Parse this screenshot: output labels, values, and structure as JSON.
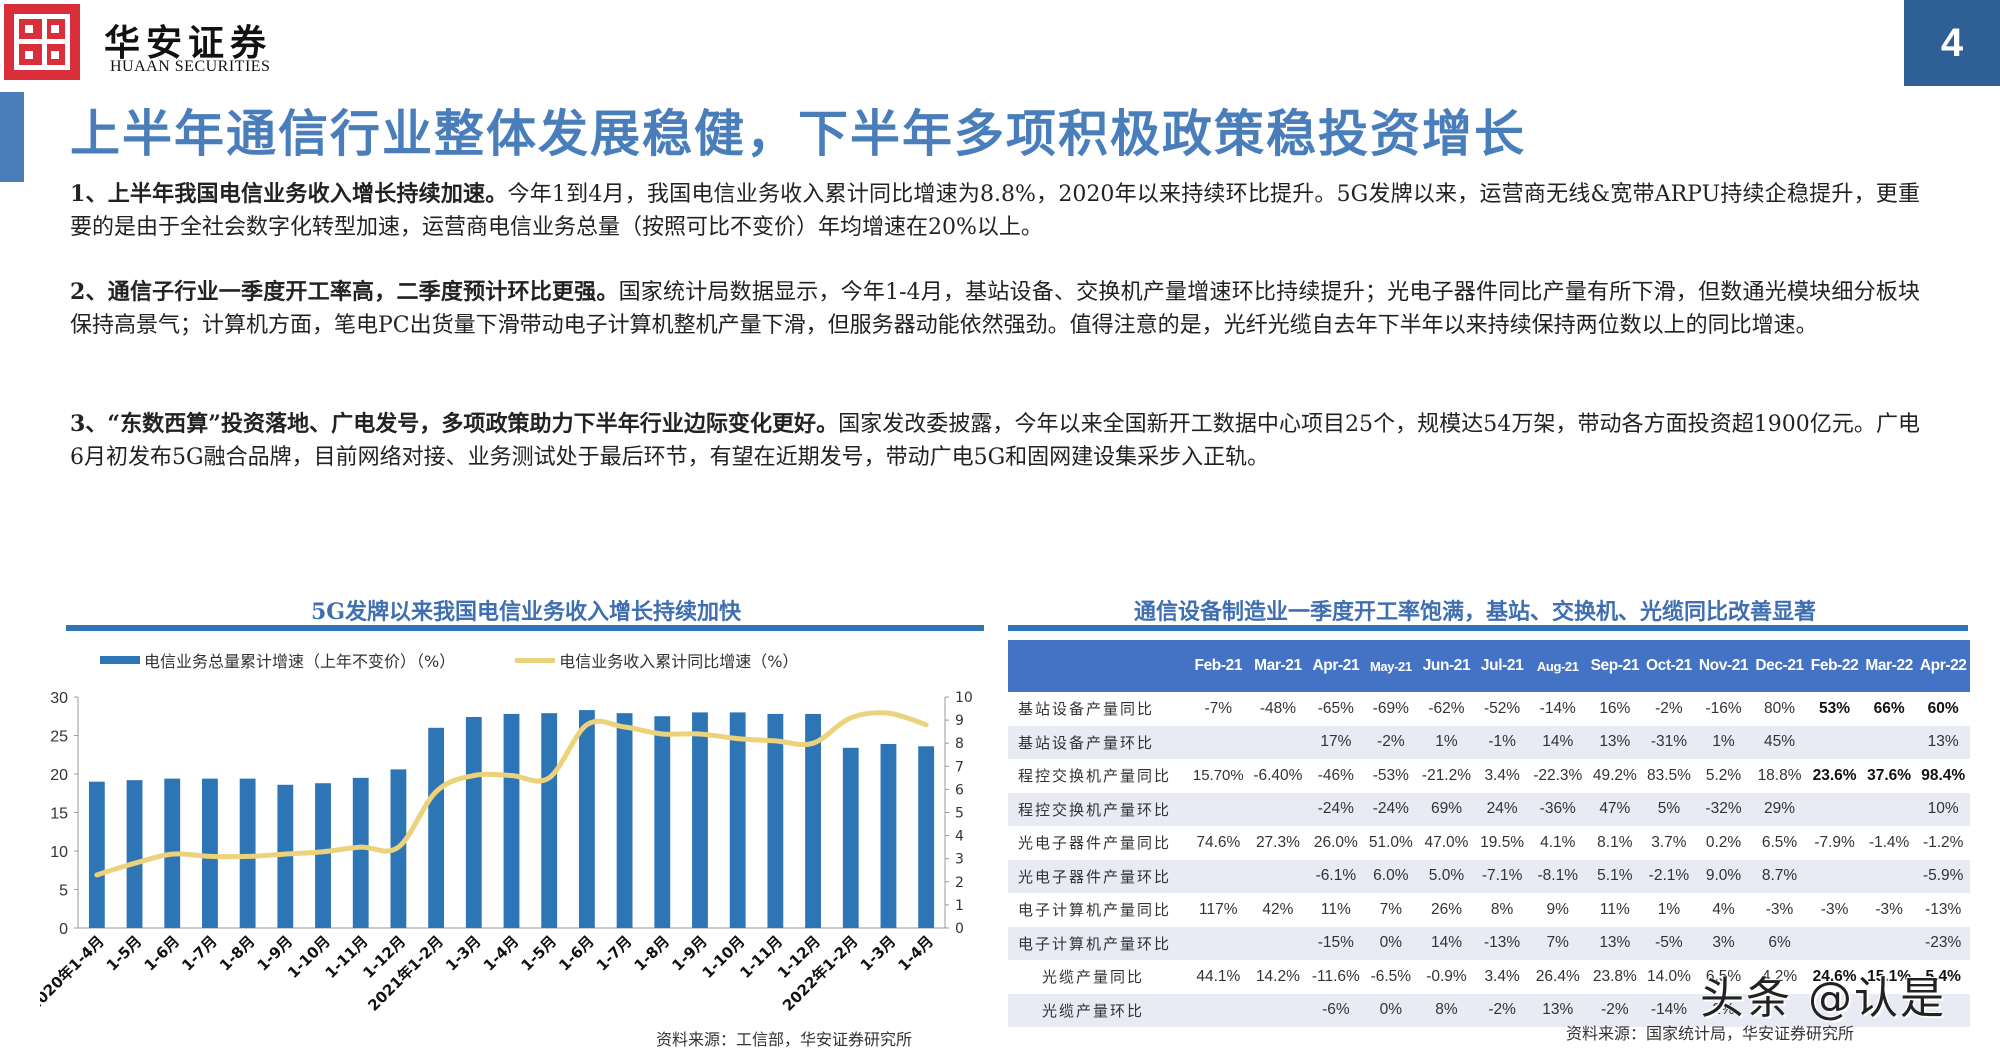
{
  "header": {
    "brand_cn": "华安证券",
    "brand_en": "HUAAN SECURITIES",
    "page_number": "4",
    "colors": {
      "logo_red": "#d92f3a",
      "page_num_bg": "#2e6096",
      "title_blue": "#4a7ebb"
    }
  },
  "title": "上半年通信行业整体发展稳健，下半年多项积极政策稳投资增长",
  "paragraphs": [
    {
      "lead": "1、上半年我国电信业务收入增长持续加速。",
      "body": "今年1到4月，我国电信业务收入累计同比增速为8.8%，2020年以来持续环比提升。5G发牌以来，运营商无线&宽带ARPU持续企稳提升，更重要的是由于全社会数字化转型加速，运营商电信业务总量（按照可比不变价）年均增速在20%以上。"
    },
    {
      "lead": "2、通信子行业一季度开工率高，二季度预计环比更强。",
      "body": "国家统计局数据显示，今年1-4月，基站设备、交换机产量增速环比持续提升；光电子器件同比产量有所下滑，但数通光模块细分板块保持高景气；计算机方面，笔电PC出货量下滑带动电子计算机整机产量下滑，但服务器动能依然强劲。值得注意的是，光纤光缆自去年下半年以来持续保持两位数以上的同比增速。"
    },
    {
      "lead": "3、“东数西算”投资落地、广电发号，多项政策助力下半年行业边际变化更好。",
      "body": "国家发改委披露，今年以来全国新开工数据中心项目25个，规模达54万架，带动各方面投资超1900亿元。广电6月初发布5G融合品牌，目前网络对接、业务测试处于最后环节，有望在近期发号，带动广电5G和固网建设集采步入正轨。"
    }
  ],
  "left_section": {
    "title": "5G发牌以来我国电信业务收入增长持续加快",
    "source": "资料来源：工信部，华安证券研究所"
  },
  "right_section": {
    "title": "通信设备制造业一季度开工率饱满，基站、交换机、光缆同比改善显著",
    "source": "资料来源：国家统计局，华安证券研究所"
  },
  "chart_data": [
    {
      "type": "bar+line",
      "title": "5G发牌以来我国电信业务收入增长持续加快",
      "categories": [
        "2020年1-4月",
        "1-5月",
        "1-6月",
        "1-7月",
        "1-8月",
        "1-9月",
        "1-10月",
        "1-11月",
        "1-12月",
        "2021年1-2月",
        "1-3月",
        "1-4月",
        "1-5月",
        "1-6月",
        "1-7月",
        "1-8月",
        "1-9月",
        "1-10月",
        "1-11月",
        "1-12月",
        "2022年1-2月",
        "1-3月",
        "1-4月"
      ],
      "series": [
        {
          "name": "电信业务总量累计增速（上年不变价）（%）",
          "type": "bar",
          "axis": "left",
          "color": "#2e75b6",
          "values": [
            19.0,
            19.2,
            19.4,
            19.4,
            19.4,
            18.6,
            18.8,
            19.5,
            20.6,
            26.0,
            27.4,
            27.8,
            27.9,
            28.3,
            27.9,
            27.5,
            28.0,
            28.0,
            27.8,
            27.8,
            23.4,
            23.9,
            23.6
          ]
        },
        {
          "name": "电信业务收入累计同比增速（%）",
          "type": "line",
          "axis": "right",
          "color": "#ecd27a",
          "values": [
            2.3,
            2.8,
            3.2,
            3.1,
            3.1,
            3.2,
            3.3,
            3.5,
            3.5,
            5.9,
            6.6,
            6.6,
            6.5,
            8.8,
            8.7,
            8.4,
            8.4,
            8.2,
            8.1,
            8.0,
            9.1,
            9.3,
            8.8
          ]
        }
      ],
      "left_axis": {
        "ticks": [
          "0",
          "5",
          "10",
          "15",
          "20",
          "25",
          "30"
        ],
        "ylim": [
          0,
          30
        ]
      },
      "right_axis": {
        "ticks": [
          "0",
          "1",
          "2",
          "3",
          "4",
          "5",
          "6",
          "7",
          "8",
          "9",
          "10"
        ],
        "ylim": [
          0,
          10
        ]
      },
      "legend_position": "top"
    },
    {
      "type": "table",
      "title": "通信设备制造业一季度开工率饱满，基站、交换机、光缆同比改善显著",
      "columns": [
        "Feb-21",
        "Mar-21",
        "Apr-21",
        "May-21",
        "Jun-21",
        "Jul-21",
        "Aug-21",
        "Sep-21",
        "Oct-21",
        "Nov-21",
        "Dec-21",
        "Feb-22",
        "Mar-22",
        "Apr-22"
      ],
      "rows": [
        {
          "label": "基站设备产量同比",
          "values": [
            "-7%",
            "-48%",
            "-65%",
            "-69%",
            "-62%",
            "-52%",
            "-14%",
            "16%",
            "-2%",
            "-16%",
            "80%",
            "53%",
            "66%",
            "60%"
          ]
        },
        {
          "label": "基站设备产量环比",
          "values": [
            "",
            "",
            "17%",
            "-2%",
            "1%",
            "-1%",
            "14%",
            "13%",
            "-31%",
            "1%",
            "45%",
            "",
            "",
            "13%"
          ]
        },
        {
          "label": "程控交换机产量同比",
          "values": [
            "15.70%",
            "-6.40%",
            "-46%",
            "-53%",
            "-21.2%",
            "3.4%",
            "-22.3%",
            "49.2%",
            "83.5%",
            "5.2%",
            "18.8%",
            "23.6%",
            "37.6%",
            "98.4%"
          ]
        },
        {
          "label": "程控交换机产量环比",
          "values": [
            "",
            "",
            "-24%",
            "-24%",
            "69%",
            "24%",
            "-36%",
            "47%",
            "5%",
            "-32%",
            "29%",
            "",
            "",
            "10%"
          ]
        },
        {
          "label": "光电子器件产量同比",
          "values": [
            "74.6%",
            "27.3%",
            "26.0%",
            "51.0%",
            "47.0%",
            "19.5%",
            "4.1%",
            "8.1%",
            "3.7%",
            "0.2%",
            "6.5%",
            "-7.9%",
            "-1.4%",
            "-1.2%"
          ]
        },
        {
          "label": "光电子器件产量环比",
          "values": [
            "",
            "",
            "-6.1%",
            "6.0%",
            "5.0%",
            "-7.1%",
            "-8.1%",
            "5.1%",
            "-2.1%",
            "9.0%",
            "8.7%",
            "",
            "",
            "-5.9%"
          ]
        },
        {
          "label": "电子计算机产量同比",
          "values": [
            "117%",
            "42%",
            "11%",
            "7%",
            "26%",
            "8%",
            "9%",
            "11%",
            "1%",
            "4%",
            "-3%",
            "-3%",
            "-3%",
            "-13%"
          ]
        },
        {
          "label": "电子计算机产量环比",
          "values": [
            "",
            "",
            "-15%",
            "0%",
            "14%",
            "-13%",
            "7%",
            "13%",
            "-5%",
            "3%",
            "6%",
            "",
            "",
            "-23%"
          ]
        },
        {
          "label": "光缆产量同比",
          "values": [
            "44.1%",
            "14.2%",
            "-11.6%",
            "-6.5%",
            "-0.9%",
            "3.4%",
            "26.4%",
            "23.8%",
            "14.0%",
            "6.5%",
            "4.2%",
            "24.6%",
            "15.1%",
            "5.4%"
          ]
        },
        {
          "label": "光缆产量环比",
          "values": [
            "",
            "",
            "-6%",
            "0%",
            "8%",
            "-2%",
            "13%",
            "-2%",
            "-14%",
            "2%",
            "",
            "",
            "",
            ""
          ]
        }
      ]
    }
  ],
  "table_bold_cells": {
    "0": [
      11,
      12,
      13
    ],
    "2": [
      11,
      12,
      13
    ],
    "8": [
      11,
      12,
      13
    ]
  },
  "watermark": "头条 @认是"
}
